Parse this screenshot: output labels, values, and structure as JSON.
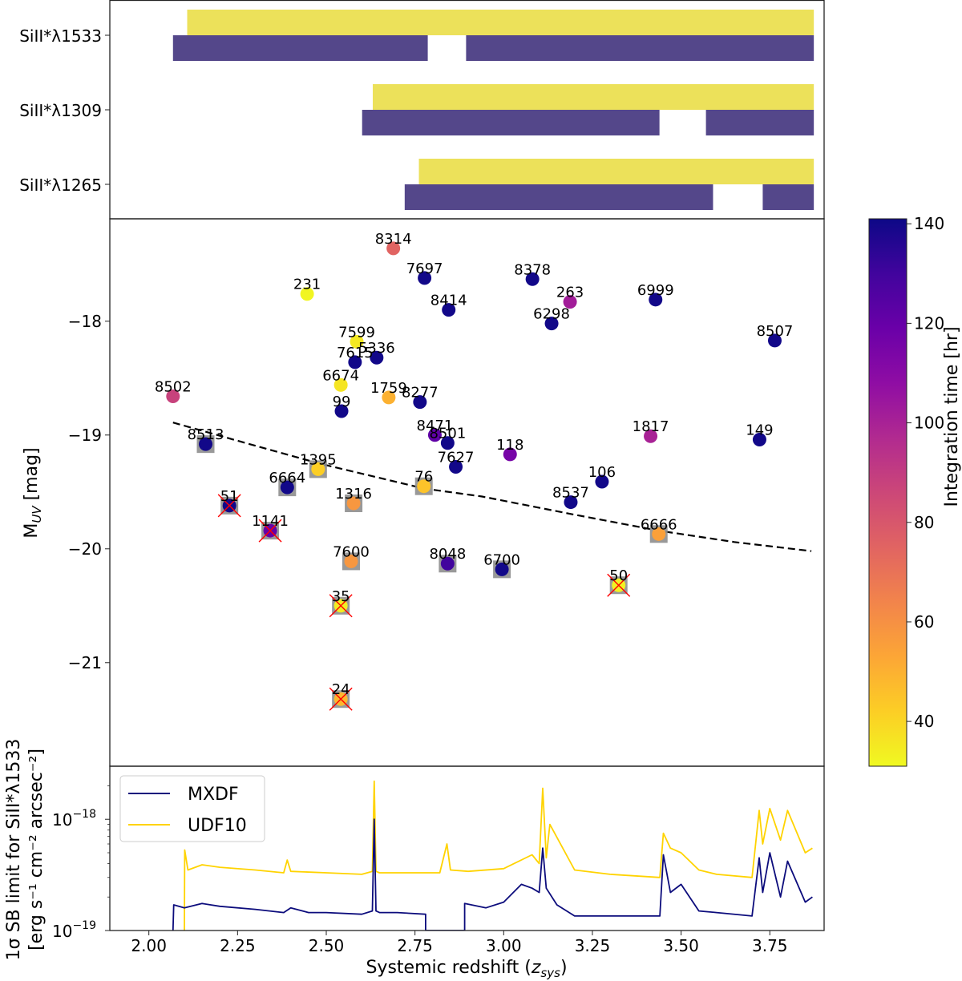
{
  "chart_data": [
    {
      "panel": "coverage",
      "type": "bar",
      "orientation": "horizontal-ranges",
      "categories": [
        "SiII*λ1533",
        "SiII*λ1309",
        "SiII*λ1265"
      ],
      "series": [
        {
          "name": "UDF10",
          "color": "#ECE15A",
          "ranges": [
            [
              [
                2.108,
                3.874
              ]
            ],
            [
              [
                2.631,
                3.874
              ]
            ],
            [
              [
                2.761,
                3.874
              ]
            ]
          ]
        },
        {
          "name": "MXDF",
          "color": "#54478A",
          "ranges": [
            [
              [
                2.068,
                2.786
              ],
              [
                2.894,
                3.874
              ]
            ],
            [
              [
                2.601,
                3.439
              ],
              [
                3.57,
                3.874
              ]
            ],
            [
              [
                2.721,
                3.59
              ],
              [
                3.73,
                3.874
              ]
            ]
          ]
        }
      ],
      "xlim": [
        1.89,
        3.903
      ]
    },
    {
      "panel": "muv-vs-redshift",
      "type": "scatter",
      "xlabel": "",
      "ylabel": "M_UV [mag]",
      "ylabel_main": "M",
      "ylabel_sub": "UV",
      "ylabel_rest": " [mag]",
      "xlim": [
        1.89,
        3.903
      ],
      "ylim": [
        -21.91,
        -17.1
      ],
      "y_inverted": true,
      "yticks": [
        -18,
        -19,
        -20,
        -21
      ],
      "ytick_labels": [
        "−18",
        "−19",
        "−20",
        "−21"
      ],
      "colorbar": {
        "label": "Integration time [hr]",
        "range": [
          31,
          141
        ],
        "ticks": [
          40,
          60,
          80,
          100,
          120,
          140
        ],
        "tick_labels": [
          "40",
          "60",
          "80",
          "100",
          "120",
          "140"
        ],
        "colormap": "plasma"
      },
      "points": [
        {
          "id": "8314",
          "z": 2.689,
          "muv": -17.36,
          "t": 75,
          "square": false,
          "cross": false
        },
        {
          "id": "7697",
          "z": 2.777,
          "muv": -17.62,
          "t": 140,
          "square": false,
          "cross": false
        },
        {
          "id": "231",
          "z": 2.446,
          "muv": -17.76,
          "t": 32,
          "square": false,
          "cross": false
        },
        {
          "id": "8414",
          "z": 2.845,
          "muv": -17.9,
          "t": 140,
          "square": false,
          "cross": false
        },
        {
          "id": "7599",
          "z": 2.586,
          "muv": -18.18,
          "t": 35,
          "square": false,
          "cross": false
        },
        {
          "id": "7615",
          "z": 2.581,
          "muv": -18.36,
          "t": 140,
          "square": false,
          "cross": false
        },
        {
          "id": "5336",
          "z": 2.642,
          "muv": -18.32,
          "t": 140,
          "square": false,
          "cross": false
        },
        {
          "id": "6674",
          "z": 2.541,
          "muv": -18.56,
          "t": 36,
          "square": false,
          "cross": false
        },
        {
          "id": "1759",
          "z": 2.676,
          "muv": -18.67,
          "t": 50,
          "square": false,
          "cross": false
        },
        {
          "id": "8277",
          "z": 2.764,
          "muv": -18.71,
          "t": 140,
          "square": false,
          "cross": false
        },
        {
          "id": "99",
          "z": 2.543,
          "muv": -18.79,
          "t": 140,
          "square": false,
          "cross": false
        },
        {
          "id": "8502",
          "z": 2.068,
          "muv": -18.66,
          "t": 88,
          "square": false,
          "cross": false
        },
        {
          "id": "8378",
          "z": 3.081,
          "muv": -17.63,
          "t": 140,
          "square": false,
          "cross": false
        },
        {
          "id": "263",
          "z": 3.187,
          "muv": -17.83,
          "t": 102,
          "square": false,
          "cross": false
        },
        {
          "id": "6298",
          "z": 3.135,
          "muv": -18.02,
          "t": 140,
          "square": false,
          "cross": false
        },
        {
          "id": "6999",
          "z": 3.428,
          "muv": -17.81,
          "t": 140,
          "square": false,
          "cross": false
        },
        {
          "id": "8507",
          "z": 3.764,
          "muv": -18.17,
          "t": 140,
          "square": false,
          "cross": false
        },
        {
          "id": "8513",
          "z": 2.16,
          "muv": -19.08,
          "t": 140,
          "square": true,
          "cross": false
        },
        {
          "id": "8471",
          "z": 2.806,
          "muv": -19.0,
          "t": 122,
          "square": false,
          "cross": false
        },
        {
          "id": "8501",
          "z": 2.842,
          "muv": -19.07,
          "t": 140,
          "square": false,
          "cross": false
        },
        {
          "id": "1395",
          "z": 2.477,
          "muv": -19.3,
          "t": 42,
          "square": true,
          "cross": false
        },
        {
          "id": "7627",
          "z": 2.865,
          "muv": -19.28,
          "t": 140,
          "square": false,
          "cross": false
        },
        {
          "id": "6664",
          "z": 2.39,
          "muv": -19.46,
          "t": 140,
          "square": true,
          "cross": false
        },
        {
          "id": "76",
          "z": 2.775,
          "muv": -19.45,
          "t": 45,
          "square": true,
          "cross": false
        },
        {
          "id": "51",
          "z": 2.227,
          "muv": -19.62,
          "t": 140,
          "square": true,
          "cross": true
        },
        {
          "id": "1316",
          "z": 2.577,
          "muv": -19.6,
          "t": 58,
          "square": true,
          "cross": false
        },
        {
          "id": "1141",
          "z": 2.342,
          "muv": -19.84,
          "t": 120,
          "square": true,
          "cross": true
        },
        {
          "id": "118",
          "z": 3.018,
          "muv": -19.17,
          "t": 115,
          "square": false,
          "cross": false
        },
        {
          "id": "1817",
          "z": 3.414,
          "muv": -19.01,
          "t": 100,
          "square": false,
          "cross": false
        },
        {
          "id": "149",
          "z": 3.721,
          "muv": -19.04,
          "t": 140,
          "square": false,
          "cross": false
        },
        {
          "id": "106",
          "z": 3.277,
          "muv": -19.41,
          "t": 140,
          "square": false,
          "cross": false
        },
        {
          "id": "8537",
          "z": 3.189,
          "muv": -19.59,
          "t": 140,
          "square": false,
          "cross": false
        },
        {
          "id": "6666",
          "z": 3.437,
          "muv": -19.87,
          "t": 55,
          "square": true,
          "cross": false
        },
        {
          "id": "7600",
          "z": 2.57,
          "muv": -20.11,
          "t": 58,
          "square": true,
          "cross": false
        },
        {
          "id": "8048",
          "z": 2.842,
          "muv": -20.13,
          "t": 130,
          "square": true,
          "cross": false
        },
        {
          "id": "6700",
          "z": 2.995,
          "muv": -20.18,
          "t": 140,
          "square": true,
          "cross": false
        },
        {
          "id": "50",
          "z": 3.324,
          "muv": -20.32,
          "t": 33,
          "square": true,
          "cross": true
        },
        {
          "id": "35",
          "z": 2.541,
          "muv": -20.5,
          "t": 34,
          "square": true,
          "cross": true
        },
        {
          "id": "24",
          "z": 2.541,
          "muv": -21.32,
          "t": 48,
          "square": true,
          "cross": true
        }
      ],
      "dashed_curve": {
        "z": [
          2.068,
          2.25,
          2.48,
          2.775,
          2.939,
          3.2,
          3.437,
          3.65,
          3.867
        ],
        "muv": [
          -18.89,
          -19.05,
          -19.25,
          -19.47,
          -19.54,
          -19.7,
          -19.84,
          -19.94,
          -20.02
        ]
      }
    },
    {
      "panel": "sb-limit",
      "type": "line",
      "xlabel": "Systemic redshift (z_sys)",
      "xlabel_main": "Systemic redshift (",
      "xlabel_var": "z",
      "xlabel_sub": "sys",
      "xlabel_end": ")",
      "ylabel_line1": "1σ SB limit for SiII*λ1533",
      "ylabel_line2": "[erg s⁻¹ cm⁻² arcsec⁻²]",
      "yscale": "log",
      "ylim": [
        1e-19,
        3e-18
      ],
      "yticks": [
        1e-19,
        1e-18
      ],
      "ytick_labels": [
        "10−19",
        "10−18"
      ],
      "xlim": [
        1.89,
        3.903
      ],
      "xticks": [
        2.0,
        2.25,
        2.5,
        2.75,
        3.0,
        3.25,
        3.5,
        3.75
      ],
      "xtick_labels": [
        "2.00",
        "2.25",
        "2.50",
        "2.75",
        "3.00",
        "3.25",
        "3.50",
        "3.75"
      ],
      "legend": {
        "position": "upper-left",
        "entries": [
          "MXDF",
          "UDF10"
        ]
      },
      "series": [
        {
          "name": "MXDF",
          "color": "#0C0C7C",
          "z": [
            2.068,
            2.07,
            2.1,
            2.15,
            2.2,
            2.3,
            2.38,
            2.4,
            2.45,
            2.5,
            2.6,
            2.63,
            2.635,
            2.64,
            2.65,
            2.7,
            2.78,
            2.78,
            2.89,
            2.89,
            2.95,
            3.0,
            3.05,
            3.08,
            3.1,
            3.11,
            3.12,
            3.15,
            3.2,
            3.3,
            3.44,
            3.45,
            3.47,
            3.5,
            3.55,
            3.6,
            3.7,
            3.72,
            3.73,
            3.75,
            3.78,
            3.8,
            3.85,
            3.87
          ],
          "values": [
            1e-19,
            1.7e-19,
            1.6e-19,
            1.75e-19,
            1.65e-19,
            1.55e-19,
            1.45e-19,
            1.6e-19,
            1.45e-19,
            1.45e-19,
            1.4e-19,
            1.5e-19,
            1e-18,
            1.5e-19,
            1.45e-19,
            1.45e-19,
            1.4e-19,
            1e-19,
            1e-19,
            1.75e-19,
            1.6e-19,
            1.8e-19,
            2.6e-19,
            2.4e-19,
            2.2e-19,
            5.5e-19,
            2.4e-19,
            1.7e-19,
            1.35e-19,
            1.35e-19,
            1.35e-19,
            4.8e-19,
            2.2e-19,
            2.6e-19,
            1.5e-19,
            1.45e-19,
            1.35e-19,
            4.5e-19,
            2.2e-19,
            5e-19,
            2e-19,
            4.2e-19,
            1.8e-19,
            2e-19
          ]
        },
        {
          "name": "UDF10",
          "color": "#FFD300",
          "z": [
            2.1,
            2.101,
            2.11,
            2.15,
            2.2,
            2.3,
            2.38,
            2.39,
            2.4,
            2.5,
            2.6,
            2.63,
            2.635,
            2.64,
            2.65,
            2.7,
            2.82,
            2.84,
            2.85,
            2.9,
            3.0,
            3.08,
            3.1,
            3.11,
            3.12,
            3.13,
            3.2,
            3.3,
            3.44,
            3.45,
            3.47,
            3.5,
            3.55,
            3.6,
            3.7,
            3.72,
            3.73,
            3.75,
            3.78,
            3.8,
            3.85,
            3.87
          ],
          "values": [
            1e-19,
            5.3e-19,
            3.5e-19,
            3.9e-19,
            3.7e-19,
            3.5e-19,
            3.3e-19,
            4.3e-19,
            3.4e-19,
            3.3e-19,
            3.2e-19,
            3.4e-19,
            2.2e-18,
            3.4e-19,
            3.3e-19,
            3.3e-19,
            3.3e-19,
            6e-19,
            3.5e-19,
            3.4e-19,
            3.6e-19,
            4.8e-19,
            4e-19,
            1.9e-18,
            4.5e-19,
            9e-19,
            3.5e-19,
            3.2e-19,
            3e-19,
            7.5e-19,
            5.5e-19,
            5e-19,
            3.5e-19,
            3.2e-19,
            3e-19,
            1.2e-18,
            6e-19,
            1.25e-18,
            6.5e-19,
            1.2e-18,
            5e-19,
            5.5e-19
          ]
        }
      ]
    }
  ]
}
